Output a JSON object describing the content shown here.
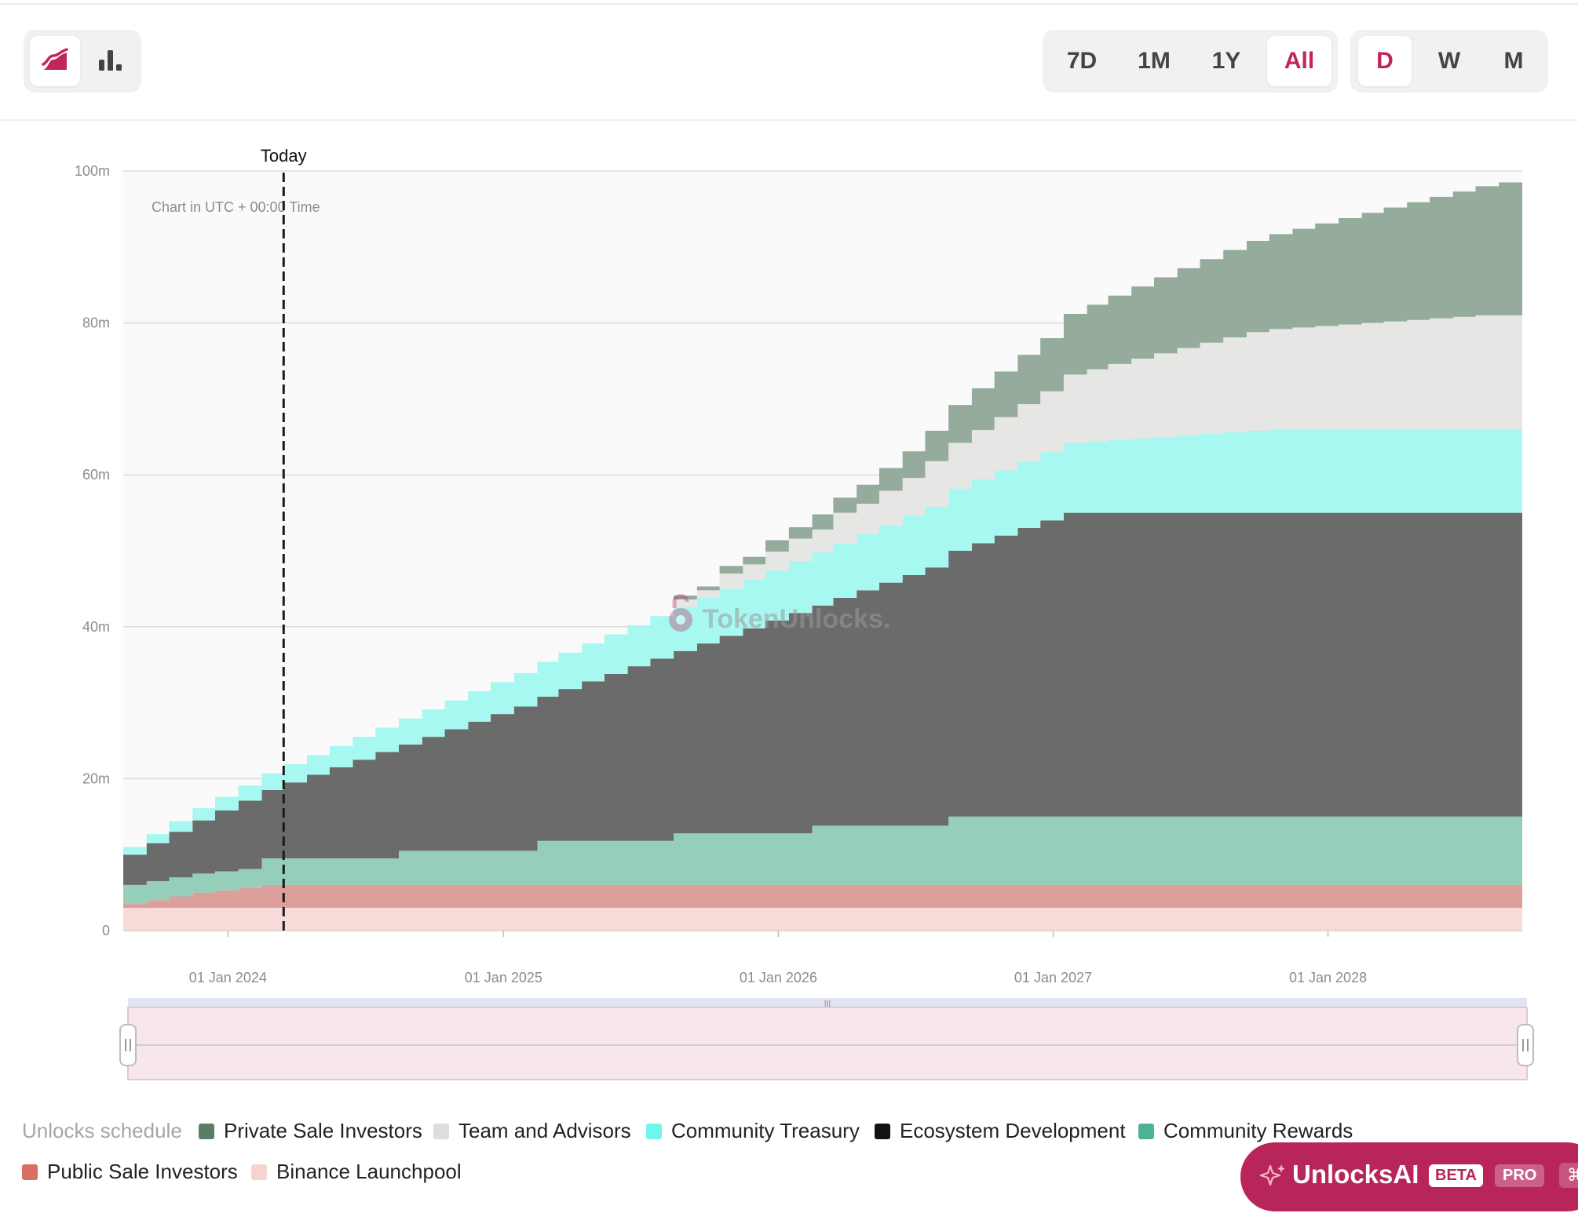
{
  "toolbar": {
    "chart_types": [
      {
        "name": "area-chart-icon",
        "active": true
      },
      {
        "name": "bar-chart-icon",
        "active": false
      }
    ],
    "ranges": [
      "7D",
      "1M",
      "1Y",
      "All"
    ],
    "active_range": "All",
    "intervals": [
      "D",
      "W",
      "M"
    ],
    "active_interval": "D"
  },
  "chart_data": {
    "type": "area",
    "stacked": true,
    "step": true,
    "note": "Chart in UTC + 00:00 Time",
    "today_label": "Today",
    "watermark": "TokenUnlocks.",
    "ylim": [
      0,
      100000000
    ],
    "y_ticks": [
      0,
      20000000,
      40000000,
      60000000,
      80000000,
      100000000
    ],
    "y_tick_labels": [
      "0",
      "20m",
      "40m",
      "60m",
      "80m",
      "100m"
    ],
    "x_tick_labels": [
      "01 Jan 2024",
      "01 Jan 2025",
      "01 Jan 2026",
      "01 Jan 2027",
      "01 Jan 2028"
    ],
    "x_start": "2023-08-15",
    "x_end": "2028-09-15",
    "today": "2024-03-15",
    "grid": true,
    "x": [
      "2023-08-15",
      "2023-09-15",
      "2023-10-15",
      "2023-11-15",
      "2023-12-15",
      "2024-01-15",
      "2024-02-15",
      "2024-03-15",
      "2024-04-15",
      "2024-05-15",
      "2024-06-15",
      "2024-07-15",
      "2024-08-15",
      "2024-09-15",
      "2024-10-15",
      "2024-11-15",
      "2024-12-15",
      "2025-01-15",
      "2025-02-15",
      "2025-03-15",
      "2025-04-15",
      "2025-05-15",
      "2025-06-15",
      "2025-07-15",
      "2025-08-15",
      "2025-09-15",
      "2025-10-15",
      "2025-11-15",
      "2025-12-15",
      "2026-01-15",
      "2026-02-15",
      "2026-03-15",
      "2026-04-15",
      "2026-05-15",
      "2026-06-15",
      "2026-07-15",
      "2026-08-15",
      "2026-09-15",
      "2026-10-15",
      "2026-11-15",
      "2026-12-15",
      "2027-01-15",
      "2027-02-15",
      "2027-03-15",
      "2027-04-15",
      "2027-05-15",
      "2027-06-15",
      "2027-07-15",
      "2027-08-15",
      "2027-09-15",
      "2027-10-15",
      "2027-11-15",
      "2027-12-15",
      "2028-01-15",
      "2028-02-15",
      "2028-03-15",
      "2028-04-15",
      "2028-05-15",
      "2028-06-15",
      "2028-07-15",
      "2028-08-15",
      "2028-09-15"
    ],
    "series": [
      {
        "name": "Binance Launchpool",
        "color": "#f6dbd9",
        "values": [
          3,
          3,
          3,
          3,
          3,
          3,
          3,
          3,
          3,
          3,
          3,
          3,
          3,
          3,
          3,
          3,
          3,
          3,
          3,
          3,
          3,
          3,
          3,
          3,
          3,
          3,
          3,
          3,
          3,
          3,
          3,
          3,
          3,
          3,
          3,
          3,
          3,
          3,
          3,
          3,
          3,
          3,
          3,
          3,
          3,
          3,
          3,
          3,
          3,
          3,
          3,
          3,
          3,
          3,
          3,
          3,
          3,
          3,
          3,
          3,
          3,
          3
        ]
      },
      {
        "name": "Public Sale Investors",
        "color": "#dc9f9b",
        "values": [
          0.5,
          1,
          1.5,
          2,
          2.3,
          2.6,
          3,
          3,
          3,
          3,
          3,
          3,
          3,
          3,
          3,
          3,
          3,
          3,
          3,
          3,
          3,
          3,
          3,
          3,
          3,
          3,
          3,
          3,
          3,
          3,
          3,
          3,
          3,
          3,
          3,
          3,
          3,
          3,
          3,
          3,
          3,
          3,
          3,
          3,
          3,
          3,
          3,
          3,
          3,
          3,
          3,
          3,
          3,
          3,
          3,
          3,
          3,
          3,
          3,
          3,
          3,
          3
        ]
      },
      {
        "name": "Community Rewards",
        "color": "#95cfb9",
        "values": [
          2.5,
          2.5,
          2.5,
          2.5,
          2.5,
          2.5,
          3.5,
          3.5,
          3.5,
          3.5,
          3.5,
          3.5,
          4.5,
          4.5,
          4.5,
          4.5,
          4.5,
          4.5,
          5.8,
          5.8,
          5.8,
          5.8,
          5.8,
          5.8,
          6.8,
          6.8,
          6.8,
          6.8,
          6.8,
          6.8,
          7.8,
          7.8,
          7.8,
          7.8,
          7.8,
          7.8,
          9,
          9,
          9,
          9,
          9,
          9,
          9,
          9,
          9,
          9,
          9,
          9,
          9,
          9,
          9,
          9,
          9,
          9,
          9,
          9,
          9,
          9,
          9,
          9,
          9,
          9
        ]
      },
      {
        "name": "Ecosystem Development",
        "color": "#6b6b6b",
        "values": [
          4,
          5,
          6,
          7,
          8,
          9,
          9,
          10,
          11,
          12,
          13,
          14,
          14,
          15,
          16,
          17,
          18,
          19,
          19,
          20,
          21,
          22,
          23,
          24,
          24,
          25,
          26,
          27,
          28,
          29,
          29,
          30,
          31,
          32,
          33,
          34,
          35,
          36,
          37,
          38,
          39,
          40,
          40,
          40,
          40,
          40,
          40,
          40,
          40,
          40,
          40,
          40,
          40,
          40,
          40,
          40,
          40,
          40,
          40,
          40,
          40,
          40
        ]
      },
      {
        "name": "Community Treasury",
        "color": "#a7f8f1",
        "values": [
          1,
          1.2,
          1.4,
          1.6,
          1.8,
          2,
          2.2,
          2.4,
          2.6,
          2.8,
          3,
          3.2,
          3.4,
          3.6,
          3.8,
          4,
          4.2,
          4.4,
          4.6,
          4.8,
          5,
          5.2,
          5.4,
          5.6,
          5.8,
          6,
          6.2,
          6.4,
          6.6,
          6.8,
          7,
          7.2,
          7.4,
          7.6,
          7.8,
          8,
          8.2,
          8.4,
          8.6,
          8.8,
          9,
          9.2,
          9.4,
          9.6,
          9.8,
          10,
          10.2,
          10.4,
          10.6,
          10.8,
          11,
          11,
          11,
          11,
          11,
          11,
          11,
          11,
          11,
          11,
          11,
          11
        ]
      },
      {
        "name": "Team and Advisors",
        "color": "#e6e6e4",
        "values": [
          0,
          0,
          0,
          0,
          0,
          0,
          0,
          0,
          0,
          0,
          0,
          0,
          0,
          0,
          0,
          0,
          0,
          0,
          0,
          0,
          0,
          0,
          0,
          0,
          1,
          1,
          2,
          2,
          2.5,
          3,
          3,
          4,
          4,
          4.5,
          5,
          6,
          6,
          6.5,
          7,
          7.5,
          8,
          9,
          9.5,
          10,
          10.5,
          11,
          11.5,
          12,
          12.5,
          13,
          13.2,
          13.4,
          13.6,
          13.8,
          14,
          14.2,
          14.4,
          14.6,
          14.8,
          15,
          15,
          15
        ]
      },
      {
        "name": "Private Sale Investors",
        "color": "#95ab9c",
        "values": [
          0,
          0,
          0,
          0,
          0,
          0,
          0,
          0,
          0,
          0,
          0,
          0,
          0,
          0,
          0,
          0,
          0,
          0,
          0,
          0,
          0,
          0,
          0,
          0,
          0.5,
          0.5,
          1,
          1,
          1.5,
          1.5,
          2,
          2,
          2.5,
          3,
          3.5,
          4,
          5,
          5.5,
          6,
          6.5,
          7,
          8,
          8.5,
          9,
          9.5,
          10,
          10.5,
          11,
          11.5,
          12,
          12.5,
          13,
          13.5,
          14,
          14.5,
          15,
          15.5,
          16,
          16.5,
          17,
          17.5,
          18
        ]
      }
    ],
    "legend_title": "Unlocks schedule",
    "legend": [
      {
        "name": "Private Sale Investors",
        "color": "#5a7d63"
      },
      {
        "name": "Team and Advisors",
        "color": "#dddddd"
      },
      {
        "name": "Community Treasury",
        "color": "#6ff7ee"
      },
      {
        "name": "Ecosystem Development",
        "color": "#111111"
      },
      {
        "name": "Community Rewards",
        "color": "#4eb394"
      },
      {
        "name": "Public Sale Investors",
        "color": "#d96e62"
      },
      {
        "name": "Binance Launchpool",
        "color": "#f6d3ce"
      }
    ],
    "legend_placement": "bottom"
  },
  "assistant": {
    "name": "UnlocksAI",
    "beta": "BETA",
    "pro": "PRO",
    "shortcut": "⌘"
  }
}
